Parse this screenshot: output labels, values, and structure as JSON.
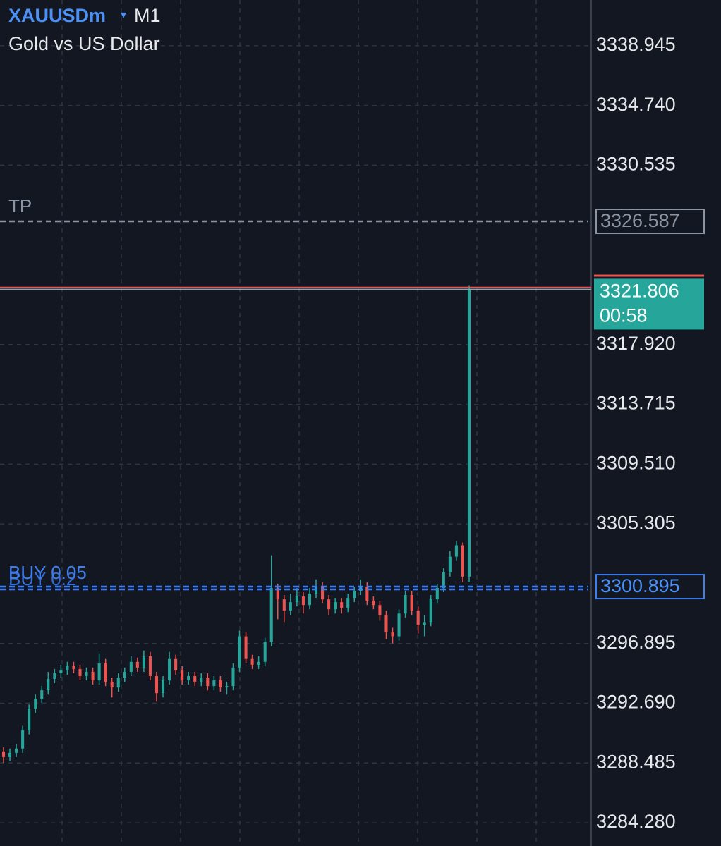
{
  "chart_data": {
    "type": "candlestick",
    "symbol": "XAUUSDm",
    "timeframe": "M1",
    "title": "Gold vs US Dollar",
    "ylim": [
      3282.647,
      3342.161
    ],
    "yticks": [
      3338.945,
      {
        "value": 3334.74,
        "label": "3334.740"
      },
      3330.535,
      {
        "value": 3317.92,
        "label": "3317.920"
      },
      3313.715,
      {
        "value": 3309.51,
        "label": "3309.510"
      },
      3305.305,
      3296.895,
      {
        "value": 3292.69,
        "label": "3292.690"
      },
      3288.485,
      {
        "value": 3284.28,
        "label": "3284.280"
      }
    ],
    "grid": true,
    "up_color": "#26a69a",
    "down_color": "#ef5350",
    "series": {
      "open": [
        3289.3,
        3288.9,
        3289.2,
        3289.5,
        3290.8,
        3292.3,
        3293.0,
        3293.6,
        3294.4,
        3294.8,
        3295.0,
        3295.3,
        3295.1,
        3294.6,
        3294.9,
        3294.3,
        3295.5,
        3294.2,
        3293.8,
        3294.5,
        3294.9,
        3295.6,
        3295.2,
        3296.0,
        3294.6,
        3293.4,
        3294.3,
        3295.8,
        3295.0,
        3294.3,
        3294.6,
        3294.2,
        3294.5,
        3293.9,
        3294.3,
        3293.8,
        3293.9,
        3295.2,
        3297.4,
        3295.8,
        3295.4,
        3295.6,
        3297.0,
        3300.8,
        3300.0,
        3299.2,
        3299.8,
        3300.2,
        3299.6,
        3300.4,
        3300.9,
        3300.0,
        3299.3,
        3299.8,
        3299.4,
        3300.1,
        3300.6,
        3300.9,
        3299.9,
        3299.6,
        3298.9,
        3297.7,
        3297.4,
        3299.0,
        3300.3,
        3299.2,
        3298.2,
        3298.4,
        3300.0,
        3300.8,
        3301.9,
        3303.0,
        3303.8,
        3301.6
      ],
      "high": [
        3289.6,
        3289.5,
        3289.8,
        3291.1,
        3292.6,
        3293.3,
        3293.9,
        3294.9,
        3295.1,
        3295.4,
        3295.6,
        3295.6,
        3295.4,
        3295.2,
        3295.2,
        3296.2,
        3295.8,
        3294.5,
        3294.8,
        3295.2,
        3296.0,
        3295.9,
        3296.4,
        3296.3,
        3294.9,
        3294.6,
        3296.3,
        3296.1,
        3295.3,
        3294.9,
        3294.9,
        3294.8,
        3294.8,
        3294.6,
        3294.6,
        3294.2,
        3295.5,
        3297.8,
        3297.7,
        3296.1,
        3296.0,
        3297.3,
        3303.1,
        3301.1,
        3300.3,
        3300.4,
        3300.8,
        3300.5,
        3300.8,
        3301.4,
        3301.2,
        3300.3,
        3300.1,
        3300.1,
        3300.4,
        3300.9,
        3301.4,
        3301.2,
        3300.2,
        3299.9,
        3299.2,
        3298.0,
        3299.3,
        3300.6,
        3300.6,
        3299.5,
        3298.9,
        3300.3,
        3301.1,
        3302.2,
        3303.4,
        3304.1,
        3304.0,
        3322.1
      ],
      "low": [
        3288.5,
        3288.6,
        3288.9,
        3289.2,
        3290.5,
        3292.0,
        3292.7,
        3293.3,
        3294.1,
        3294.5,
        3294.7,
        3294.8,
        3294.3,
        3294.3,
        3294.0,
        3294.0,
        3293.9,
        3293.1,
        3293.5,
        3294.2,
        3294.6,
        3294.9,
        3294.9,
        3294.3,
        3292.8,
        3293.1,
        3294.0,
        3294.7,
        3294.0,
        3294.0,
        3293.9,
        3293.9,
        3293.6,
        3293.6,
        3293.5,
        3293.3,
        3293.6,
        3294.9,
        3295.5,
        3295.1,
        3295.1,
        3295.3,
        3296.7,
        3298.6,
        3298.4,
        3298.9,
        3299.5,
        3299.0,
        3299.3,
        3300.1,
        3299.7,
        3298.9,
        3299.0,
        3299.0,
        3299.1,
        3299.8,
        3300.3,
        3299.6,
        3299.3,
        3298.5,
        3297.2,
        3296.9,
        3297.1,
        3298.7,
        3298.9,
        3297.6,
        3297.4,
        3298.1,
        3299.7,
        3300.5,
        3301.6,
        3302.7,
        3301.2,
        3301.2
      ],
      "close": [
        3288.9,
        3289.2,
        3289.5,
        3290.8,
        3292.3,
        3293.0,
        3293.6,
        3294.4,
        3294.8,
        3295.0,
        3295.3,
        3295.1,
        3294.6,
        3294.9,
        3294.3,
        3295.5,
        3294.2,
        3293.8,
        3294.5,
        3294.9,
        3295.6,
        3295.2,
        3296.0,
        3294.6,
        3293.4,
        3294.3,
        3295.8,
        3295.0,
        3294.3,
        3294.6,
        3294.2,
        3294.5,
        3293.9,
        3294.3,
        3293.8,
        3293.9,
        3295.2,
        3297.4,
        3295.8,
        3295.4,
        3295.6,
        3297.0,
        3300.8,
        3300.0,
        3299.2,
        3299.8,
        3300.2,
        3299.6,
        3300.4,
        3300.9,
        3300.0,
        3299.3,
        3299.8,
        3299.4,
        3300.1,
        3300.6,
        3300.9,
        3299.9,
        3299.6,
        3298.9,
        3297.7,
        3297.4,
        3299.0,
        3300.3,
        3299.2,
        3298.2,
        3298.4,
        3300.0,
        3300.8,
        3301.9,
        3303.0,
        3303.8,
        3301.6,
        3321.806
      ]
    },
    "last_price": 3321.806,
    "ask_price": 3321.95,
    "countdown": "00:58",
    "levels": [
      {
        "label": "TP",
        "value": 3326.587,
        "color": "#8a94a3"
      },
      {
        "label": "BUY 0.05",
        "value": 3300.895,
        "color": "#3d7ef0"
      },
      {
        "label": "BUY 0.2",
        "value": 3300.895,
        "color": "#3d7ef0"
      }
    ]
  }
}
